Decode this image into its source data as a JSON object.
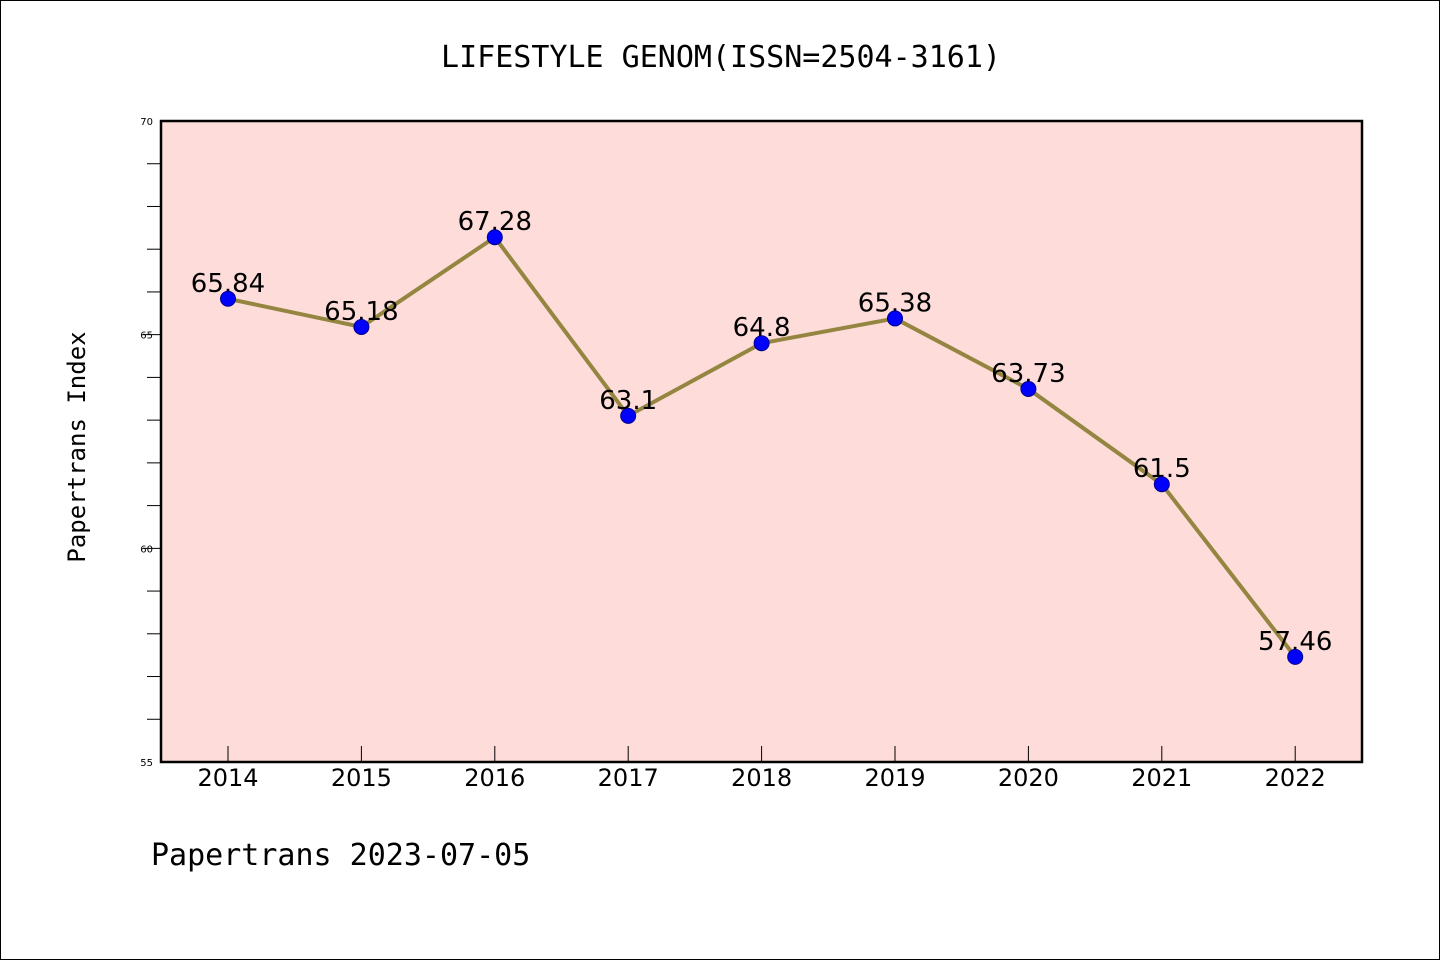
{
  "chart_data": {
    "type": "line",
    "title": "LIFESTYLE GENOM(ISSN=2504-3161)",
    "ylabel": "Papertrans Index",
    "xlabel": "",
    "footer": "Papertrans 2023-07-05",
    "categories": [
      "2014",
      "2015",
      "2016",
      "2017",
      "2018",
      "2019",
      "2020",
      "2021",
      "2022"
    ],
    "series": [
      {
        "values": [
          65.84,
          65.18,
          67.28,
          63.1,
          64.8,
          65.38,
          63.73,
          61.5,
          57.46
        ],
        "labels": [
          "65.84",
          "65.18",
          "67.28",
          "63.1",
          "64.8",
          "65.38",
          "63.73",
          "61.5",
          "57.46"
        ]
      }
    ],
    "ylim": [
      55,
      70
    ],
    "yticks": [
      "55",
      "60",
      "65",
      "70"
    ],
    "grid": false,
    "legend": "none",
    "colors": {
      "plot_background": "#fddcd9",
      "line": "#948540",
      "marker": "#0000ff",
      "marker_edge": "#00008b"
    }
  }
}
